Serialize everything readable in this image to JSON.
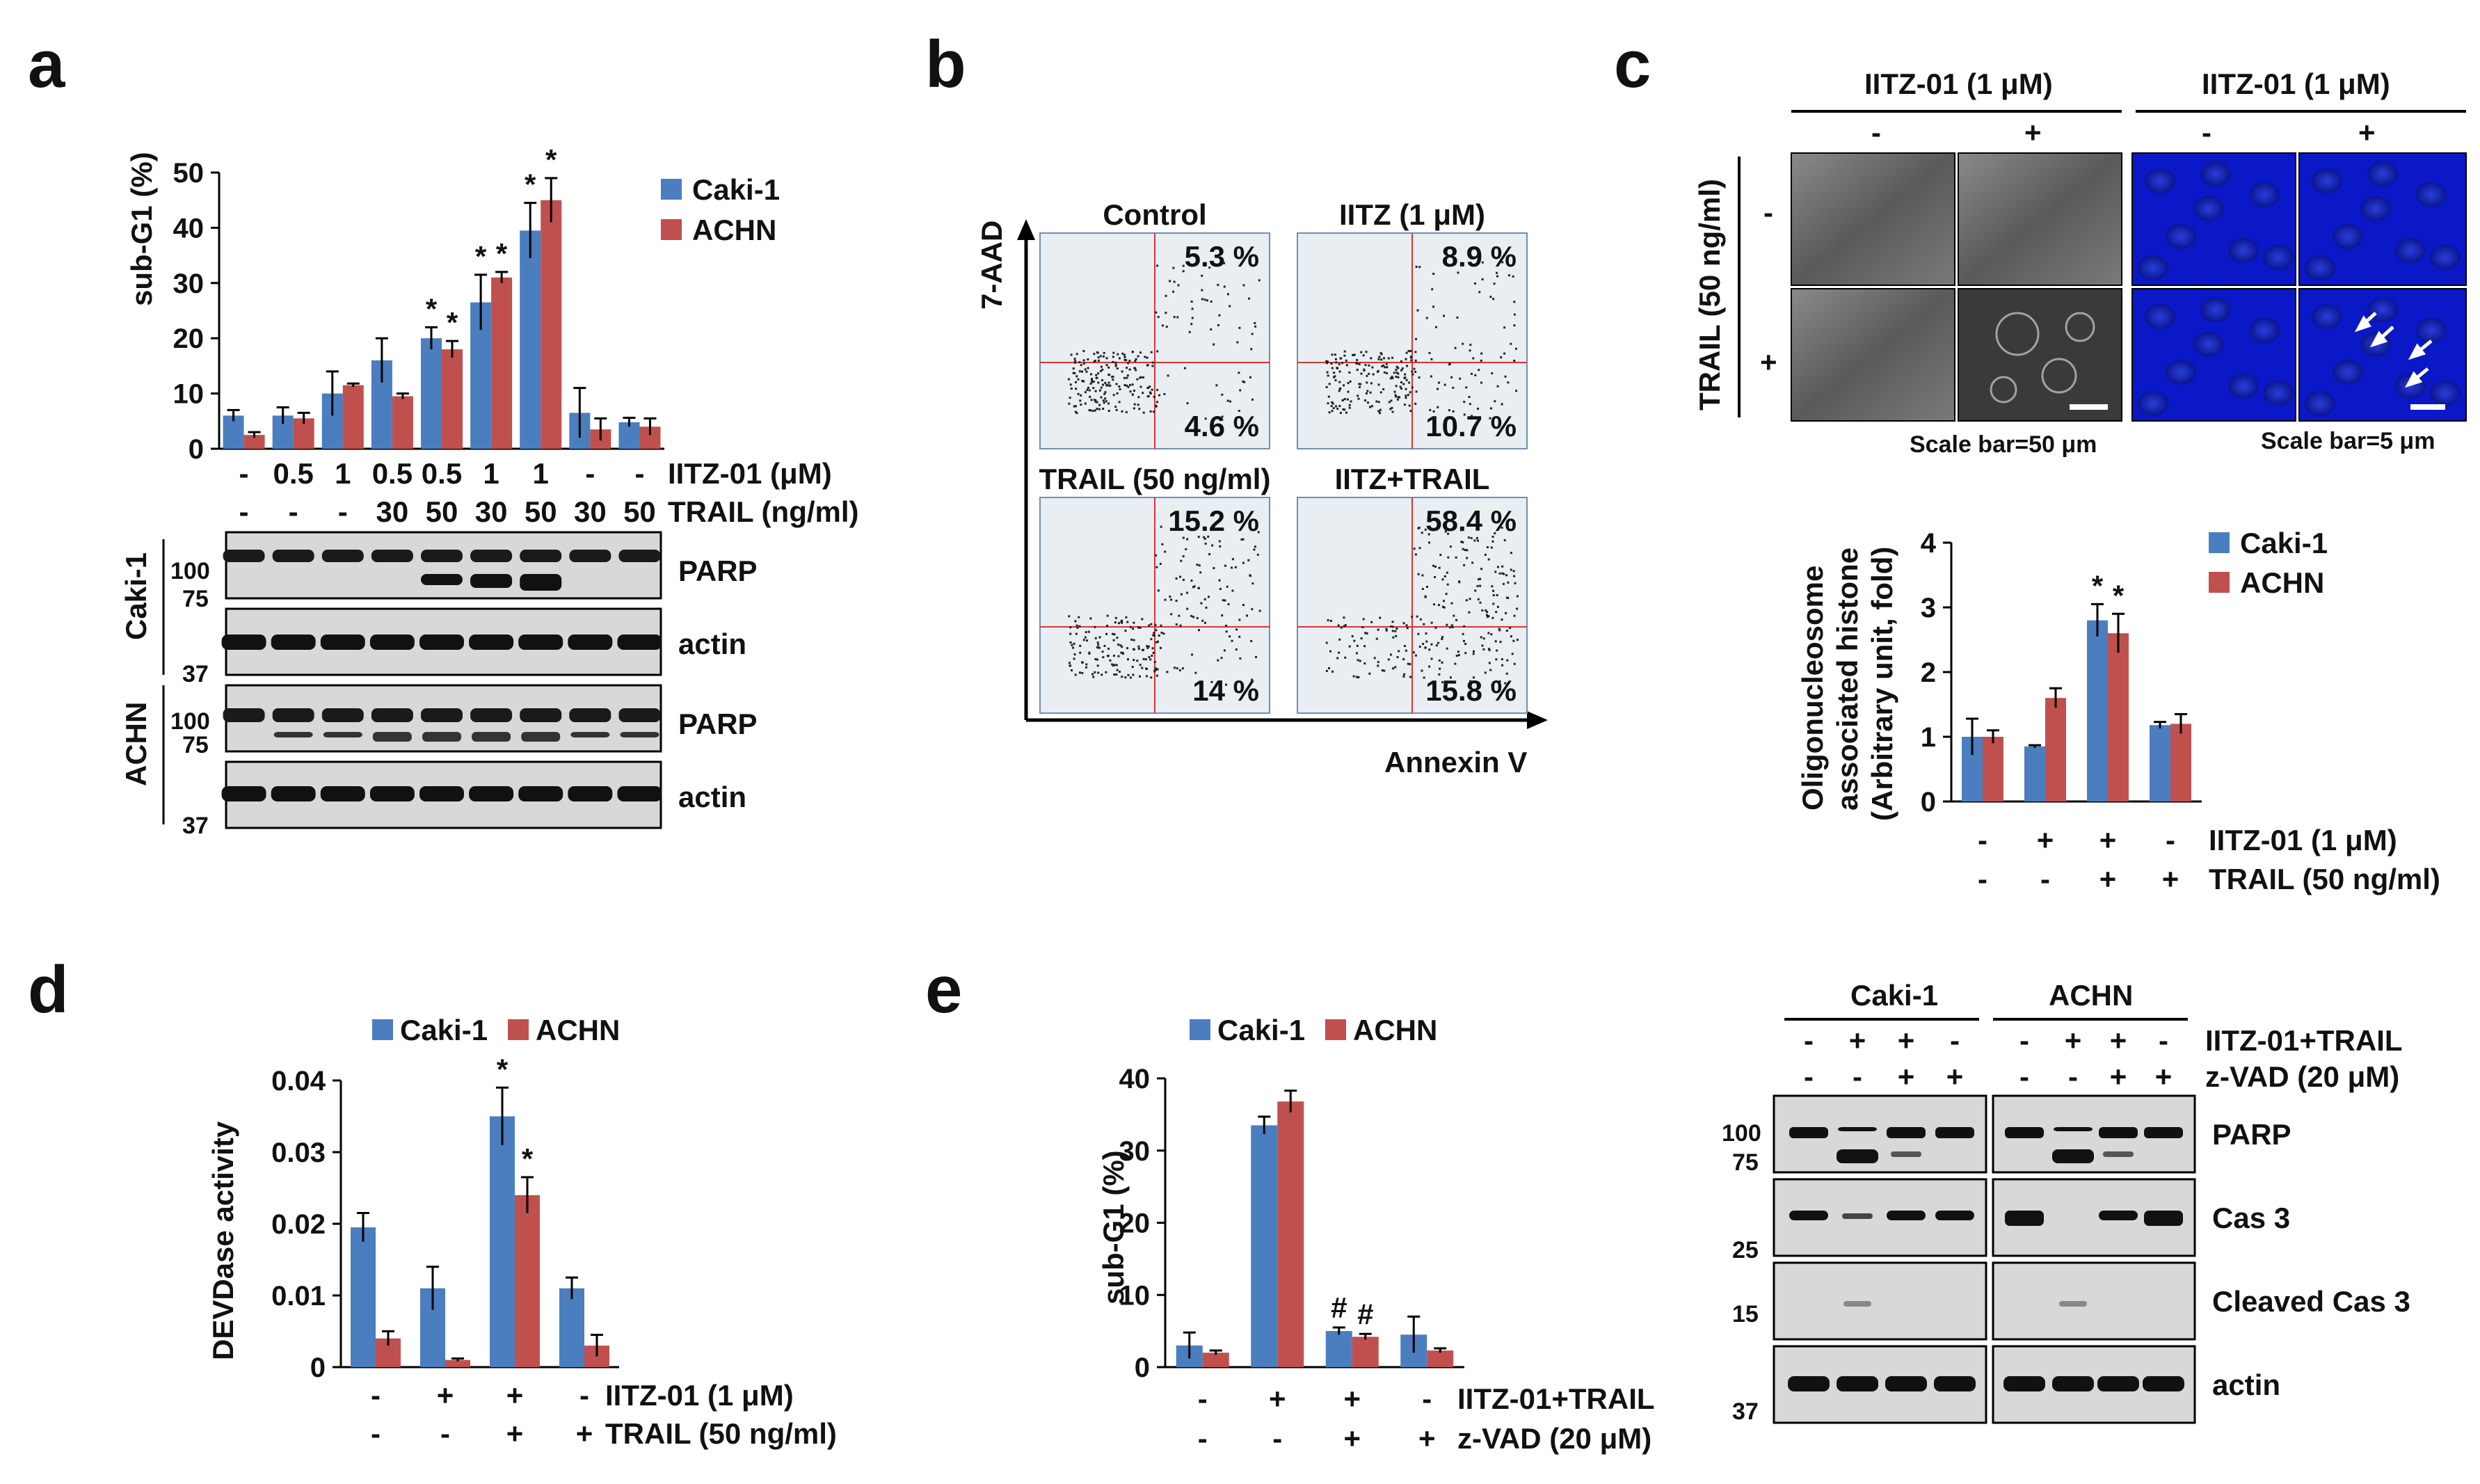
{
  "colors": {
    "caki": "#4a7ebf",
    "achn": "#c0504d",
    "flowbg": "#e9eef3",
    "quad": "#d33"
  },
  "panels": {
    "a": "a",
    "b": "b",
    "c": "c",
    "d": "d",
    "e": "e"
  },
  "legend": {
    "caki": "Caki-1",
    "achn": "ACHN"
  },
  "panel_a": {
    "iitz_cond": [
      "-",
      "0.5",
      "1",
      "0.5",
      "0.5",
      "1",
      "1",
      "-",
      "-"
    ],
    "trail_cond": [
      "-",
      "-",
      "-",
      "30",
      "50",
      "30",
      "50",
      "30",
      "50"
    ],
    "iitz_label": "IITZ-01 (μM)",
    "trail_label": "TRAIL (ng/ml)",
    "blot_labels": {
      "caki": "Caki-1",
      "achn": "ACHN",
      "parp": "PARP",
      "actin": "actin"
    },
    "mw": [
      "100",
      "75",
      "37"
    ]
  },
  "panel_b": {
    "titles": [
      "Control",
      "IITZ (1 μM)",
      "TRAIL (50 ng/ml)",
      "IITZ+TRAIL"
    ],
    "upper": [
      "5.3 %",
      "8.9 %",
      "15.2 %",
      "58.4 %"
    ],
    "lower": [
      "4.6 %",
      "10.7 %",
      "14 %",
      "15.8 %"
    ],
    "yaxis": "7-AAD",
    "xaxis": "Annexin V"
  },
  "panel_c": {
    "header": "IITZ-01 (1 μM)",
    "signs": [
      "-",
      "+"
    ],
    "row_label": "TRAIL (50 ng/ml)",
    "scale1": "Scale bar=50 μm",
    "scale2": "Scale bar=5 μm",
    "ylabel1": "Oligonucleosome",
    "ylabel2": "associated histone",
    "ylabel3": "(Arbitrary unit, fold)",
    "iitz_cond": [
      "-",
      "+",
      "+",
      "-"
    ],
    "trail_cond": [
      "-",
      "-",
      "+",
      "+"
    ],
    "iitz_label": "IITZ-01 (1 μM)",
    "trail_label": "TRAIL (50 ng/ml)"
  },
  "panel_d": {
    "ylabel": "DEVDase activity",
    "iitz_cond": [
      "-",
      "+",
      "+",
      "-"
    ],
    "trail_cond": [
      "-",
      "-",
      "+",
      "+"
    ],
    "iitz_label": "IITZ-01 (1 μM)",
    "trail_label": "TRAIL (50 ng/ml)"
  },
  "panel_e": {
    "combo_cond": [
      "-",
      "+",
      "+",
      "-"
    ],
    "zvad_cond": [
      "-",
      "-",
      "+",
      "+"
    ],
    "combo_label": "IITZ-01+TRAIL",
    "zvad_label": "z-VAD (20 μM)",
    "blot_groups": [
      "Caki-1",
      "ACHN"
    ],
    "blot_labels": [
      "PARP",
      "Cas 3",
      "Cleaved Cas 3",
      "actin"
    ],
    "mw": [
      "100",
      "75",
      "25",
      "15",
      "37"
    ]
  },
  "chart_data": [
    {
      "panel": "a",
      "type": "bar",
      "ylabel": "sub-G1 (%)",
      "ylim": [
        0,
        50
      ],
      "yticks": [
        0,
        10,
        20,
        30,
        40,
        50
      ],
      "categories": [
        "-/-",
        "0.5/-",
        "1/-",
        "0.5/30",
        "0.5/50",
        "1/30",
        "1/50",
        "-/30",
        "-/50"
      ],
      "series": [
        {
          "name": "Caki-1",
          "values": [
            6,
            6,
            10,
            16,
            20,
            26.5,
            39.5,
            6.5,
            4.8
          ],
          "errors": [
            1,
            1.5,
            4,
            4,
            2,
            5,
            5,
            4.5,
            0.8
          ]
        },
        {
          "name": "ACHN",
          "values": [
            2.5,
            5.5,
            11.5,
            9.5,
            18,
            31,
            45,
            3.5,
            4
          ],
          "errors": [
            0.5,
            1,
            0.3,
            0.5,
            1.5,
            1,
            4,
            2,
            1.5
          ]
        }
      ],
      "annotations": [
        "*",
        "*",
        "*",
        "*",
        "*",
        "*"
      ]
    },
    {
      "panel": "c",
      "type": "bar",
      "ylim": [
        0,
        4
      ],
      "yticks": [
        0,
        1,
        2,
        3,
        4
      ],
      "categories": [
        "-/-",
        "+/-",
        "+/+",
        "-/+"
      ],
      "series": [
        {
          "name": "Caki-1",
          "values": [
            1.0,
            0.85,
            2.8,
            1.18
          ],
          "errors": [
            0.28,
            0.02,
            0.25,
            0.05
          ]
        },
        {
          "name": "ACHN",
          "values": [
            1.0,
            1.6,
            2.6,
            1.2
          ],
          "errors": [
            0.1,
            0.15,
            0.3,
            0.15
          ]
        }
      ],
      "annotations": [
        "*",
        "*"
      ]
    },
    {
      "panel": "d",
      "type": "bar",
      "ylim": [
        0,
        0.04
      ],
      "yticks": [
        0,
        0.01,
        0.02,
        0.03,
        0.04
      ],
      "ytick_labels": [
        "0",
        "0.01",
        "0.02",
        "0.03",
        "0.04"
      ],
      "categories": [
        "-/-",
        "+/-",
        "+/+",
        "-/+"
      ],
      "series": [
        {
          "name": "Caki-1",
          "values": [
            0.0195,
            0.011,
            0.035,
            0.011
          ],
          "errors": [
            0.002,
            0.003,
            0.004,
            0.0015
          ]
        },
        {
          "name": "ACHN",
          "values": [
            0.004,
            0.001,
            0.024,
            0.003
          ],
          "errors": [
            0.001,
            0.0002,
            0.0025,
            0.0015
          ]
        }
      ],
      "annotations": [
        "*",
        "*"
      ]
    },
    {
      "panel": "e",
      "type": "bar",
      "ylabel": "sub-G1 (%)",
      "ylim": [
        0,
        40
      ],
      "yticks": [
        0,
        10,
        20,
        30,
        40
      ],
      "categories": [
        "-/-",
        "+/-",
        "+/+",
        "-/+"
      ],
      "series": [
        {
          "name": "Caki-1",
          "values": [
            3,
            33.5,
            5,
            4.5
          ],
          "errors": [
            1.8,
            1.2,
            0.5,
            2.5
          ]
        },
        {
          "name": "ACHN",
          "values": [
            2,
            36.8,
            4.2,
            2.3
          ],
          "errors": [
            0.3,
            1.5,
            0.4,
            0.3
          ]
        }
      ],
      "annotations": [
        "#",
        "#"
      ]
    }
  ]
}
